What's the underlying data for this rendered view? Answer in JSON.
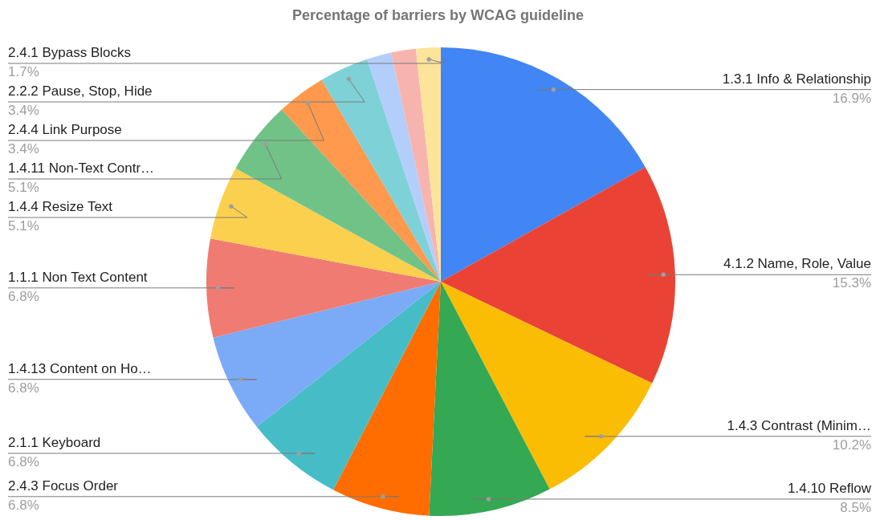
{
  "chart_data": {
    "type": "pie",
    "title": "Percentage of barriers by WCAG guideline",
    "categories": [
      "1.3.1 Info & Relationship",
      "4.1.2 Name, Role, Value",
      "1.4.3 Contrast (Minim…",
      "1.4.10 Reflow",
      "2.4.3 Focus Order",
      "2.1.1 Keyboard",
      "1.4.13 Content on Ho…",
      "1.1.1 Non Text Content",
      "1.4.4 Resize Text",
      "1.4.11 Non-Text Contr…",
      "2.4.4 Link Purpose",
      "2.2.2 Pause, Stop, Hide",
      null,
      null,
      "2.4.1 Bypass Blocks"
    ],
    "values": [
      16.9,
      15.3,
      10.2,
      8.5,
      6.8,
      6.8,
      6.8,
      6.8,
      5.1,
      5.1,
      3.4,
      3.4,
      1.7,
      1.7,
      1.7
    ],
    "value_labels": [
      "16.9%",
      "15.3%",
      "10.2%",
      "8.5%",
      "6.8%",
      "6.8%",
      "6.8%",
      "6.8%",
      "5.1%",
      "5.1%",
      "3.4%",
      "3.4%",
      null,
      null,
      "1.7%"
    ],
    "colors": [
      "#4285f4",
      "#ea4335",
      "#fbbc04",
      "#34a853",
      "#ff6d01",
      "#46bdc6",
      "#7baaf7",
      "#f07b72",
      "#fcd04f",
      "#71c287",
      "#ff994d",
      "#7ed1d7",
      "#b3cefb",
      "#f7b4ae",
      "#fde49b"
    ]
  }
}
